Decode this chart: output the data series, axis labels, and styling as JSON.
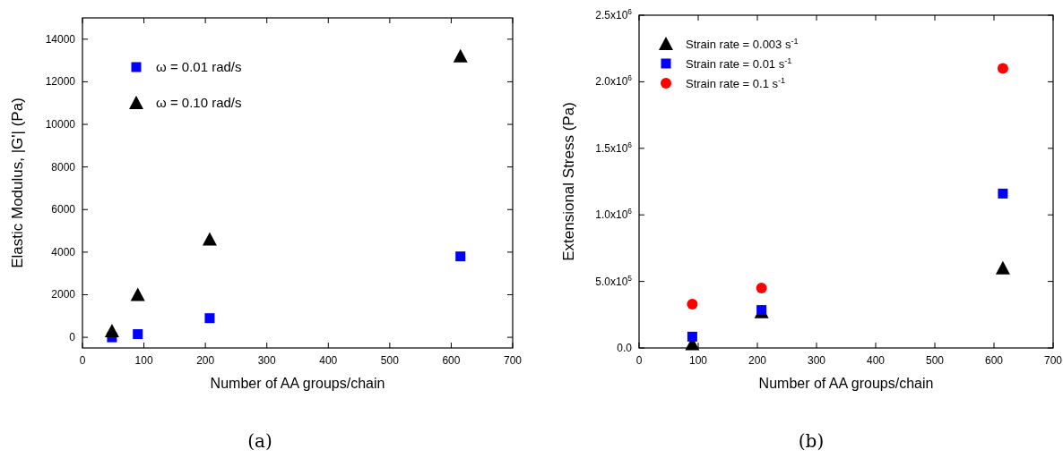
{
  "chart_data": [
    {
      "type": "scatter",
      "xlabel": "Number of AA groups/chain",
      "ylabel": "Elastic Modulus, |G'| (Pa)",
      "xlim": [
        0,
        700
      ],
      "xticks": [
        0,
        100,
        200,
        300,
        400,
        500,
        600,
        700
      ],
      "ylim": [
        -500,
        15000
      ],
      "yticks": [
        0,
        2000,
        4000,
        6000,
        8000,
        10000,
        12000,
        14000
      ],
      "legend": "top left",
      "grid": false,
      "annotations": [
        "(a)"
      ],
      "x": [
        48,
        90,
        207,
        615
      ],
      "series": [
        {
          "name": "ω = 0.01 rad/s",
          "color": "#0000ff",
          "marker": "square",
          "values": [
            0,
            150,
            900,
            3800
          ]
        },
        {
          "name": "ω = 0.10 rad/s",
          "color": "#000000",
          "marker": "triangle",
          "values": [
            300,
            2000,
            4600,
            13200
          ]
        }
      ]
    },
    {
      "type": "scatter",
      "xlabel": "Number of AA groups/chain",
      "ylabel": "Extensional Stress (Pa)",
      "xlim": [
        0,
        700
      ],
      "xticks": [
        0,
        100,
        200,
        300,
        400,
        500,
        600,
        700
      ],
      "ylim": [
        0,
        2500000
      ],
      "yticks": [
        {
          "value": 0,
          "label": "0.0"
        },
        {
          "value": 500000,
          "label": "5.0x10$^{5}$"
        },
        {
          "value": 1000000,
          "label": "1.0x10$^{6}$"
        },
        {
          "value": 1500000,
          "label": "1.5x10$^{6}$"
        },
        {
          "value": 2000000,
          "label": "2.0x10$^{6}$"
        },
        {
          "value": 2500000,
          "label": "2.5x10$^{6}$"
        }
      ],
      "legend": "top left",
      "grid": false,
      "annotations": [
        "(b)"
      ],
      "x": [
        90,
        207,
        615
      ],
      "series": [
        {
          "name": "Strain rate = 0.003 s$^{-1}$",
          "color": "#000000",
          "marker": "triangle",
          "values": [
            30000,
            270000,
            600000
          ]
        },
        {
          "name": "Strain rate = 0.01 s$^{-1}$",
          "color": "#0000ff",
          "marker": "square",
          "values": [
            85000,
            285000,
            1160000
          ]
        },
        {
          "name": "Strain rate = 0.1 s$^{-1}$",
          "color": "#ff0000",
          "marker": "circle",
          "values": [
            330000,
            450000,
            2100000
          ]
        }
      ]
    }
  ]
}
